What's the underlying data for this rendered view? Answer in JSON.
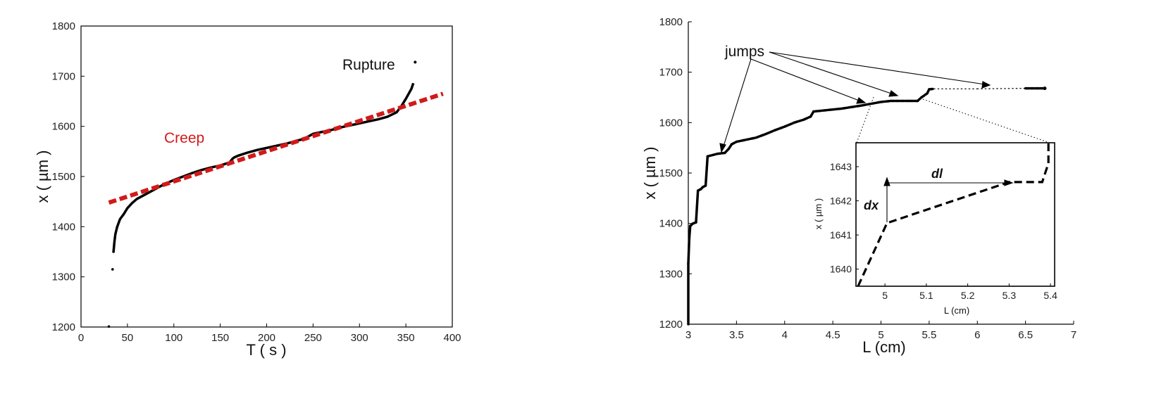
{
  "chart_data": [
    {
      "type": "scatter",
      "xlabel": "T ( s )",
      "ylabel": "x  ( µm )",
      "xlim": [
        0,
        400
      ],
      "ylim": [
        1200,
        1800
      ],
      "xticks": [
        0,
        50,
        100,
        150,
        200,
        250,
        300,
        350,
        400
      ],
      "yticks": [
        1200,
        1300,
        1400,
        1500,
        1600,
        1700,
        1800
      ],
      "grid": false,
      "annotations": [
        {
          "text": "Rupture",
          "color": "#111111"
        },
        {
          "text": "Creep",
          "color": "#d11a1a"
        }
      ],
      "series": [
        {
          "kind": "points",
          "color": "#000000",
          "x": [
            30,
            34,
            35,
            36,
            37,
            39,
            42,
            46,
            50,
            55,
            60,
            70,
            80,
            90,
            100,
            110,
            120,
            130,
            140,
            150,
            160,
            163,
            165,
            170,
            180,
            190,
            200,
            210,
            220,
            230,
            240,
            245,
            250,
            260,
            270,
            280,
            290,
            300,
            310,
            320,
            330,
            340,
            345,
            350,
            353,
            356,
            358
          ],
          "y": [
            1201,
            1315,
            1350,
            1370,
            1385,
            1400,
            1415,
            1425,
            1437,
            1447,
            1455,
            1465,
            1475,
            1485,
            1493,
            1500,
            1507,
            1513,
            1518,
            1522,
            1528,
            1535,
            1538,
            1542,
            1548,
            1553,
            1557,
            1561,
            1565,
            1570,
            1575,
            1580,
            1585,
            1589,
            1593,
            1598,
            1602,
            1606,
            1610,
            1614,
            1619,
            1628,
            1640,
            1655,
            1665,
            1675,
            1686
          ]
        },
        {
          "kind": "isolated",
          "color": "#000000",
          "x": [
            360
          ],
          "y": [
            1728
          ]
        },
        {
          "kind": "dashed-fit",
          "color": "#d11a1a",
          "x": [
            30,
            390
          ],
          "y": [
            1448,
            1665
          ]
        }
      ]
    },
    {
      "type": "line",
      "xlabel": "L (cm)",
      "ylabel": "x  ( µm )",
      "xlim": [
        3,
        7
      ],
      "ylim": [
        1200,
        1800
      ],
      "xticks": [
        3,
        3.5,
        4,
        4.5,
        5,
        5.5,
        6,
        6.5,
        7
      ],
      "yticks": [
        1200,
        1300,
        1400,
        1500,
        1600,
        1700,
        1800
      ],
      "grid": false,
      "annotations": [
        {
          "text": "jumps",
          "color": "#111111"
        }
      ],
      "series": [
        {
          "kind": "dotted-curve",
          "color": "#000000",
          "x": [
            3.0,
            3.0,
            3.01,
            3.02,
            3.05,
            3.08,
            3.1,
            3.13,
            3.15,
            3.18,
            3.2,
            3.3,
            3.38,
            3.42,
            3.45,
            3.5,
            3.6,
            3.7,
            3.8,
            3.9,
            4.0,
            4.1,
            4.2,
            4.27,
            4.3,
            4.5,
            4.6,
            4.8,
            5.0,
            5.1,
            5.3,
            5.38,
            5.42,
            5.48,
            5.5,
            5.55,
            6.0,
            6.5,
            6.7
          ],
          "y": [
            1200,
            1320,
            1370,
            1395,
            1400,
            1402,
            1465,
            1468,
            1472,
            1475,
            1533,
            1538,
            1540,
            1548,
            1557,
            1562,
            1566,
            1570,
            1577,
            1585,
            1592,
            1600,
            1606,
            1612,
            1622,
            1626,
            1628,
            1634,
            1641,
            1643,
            1643,
            1643,
            1650,
            1658,
            1666,
            1667,
            1667,
            1668,
            1668
          ]
        }
      ],
      "inset": {
        "type": "line",
        "xlabel": "L (cm)",
        "ylabel": "x  ( µm )",
        "xlim": [
          4.93,
          5.41
        ],
        "ylim": [
          1639.5,
          1643.7
        ],
        "xticks": [
          5,
          5.1,
          5.2,
          5.3,
          5.4
        ],
        "yticks": [
          1640,
          1641,
          1642,
          1643
        ],
        "annotations": [
          {
            "text": "dl",
            "color": "#111111"
          },
          {
            "text": "dx",
            "color": "#111111"
          }
        ],
        "series": [
          {
            "kind": "dashed-curve",
            "color": "#000000",
            "x": [
              4.935,
              5.005,
              5.3,
              5.38,
              5.38,
              5.395,
              5.395
            ],
            "y": [
              1639.5,
              1641.35,
              1642.55,
              1642.55,
              1642.55,
              1643.1,
              1643.7
            ]
          }
        ]
      }
    }
  ]
}
